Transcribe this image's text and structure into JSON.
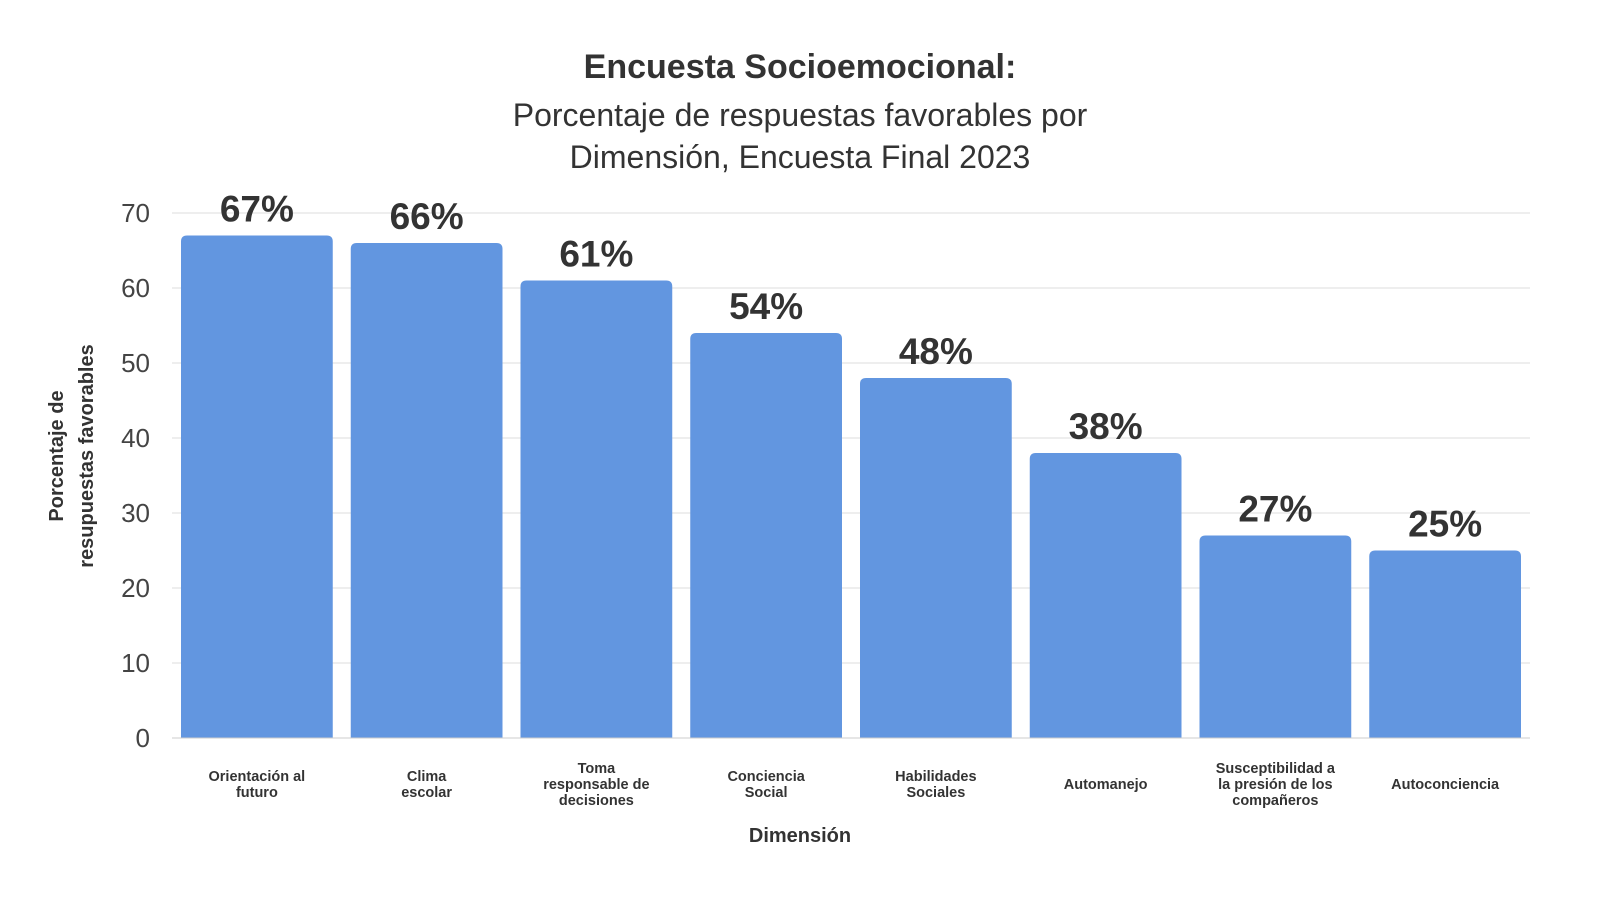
{
  "chart_data": {
    "type": "bar",
    "title": "Encuesta Socioemocional:",
    "subtitle_lines": [
      "Porcentaje de respuestas favorables por",
      "Dimensión, Encuesta Final 2023"
    ],
    "xlabel": "Dimensión",
    "ylabel_lines": [
      "Porcentaje de",
      "resupuestas favorables"
    ],
    "ylim": [
      0,
      70
    ],
    "yticks": [
      0,
      10,
      20,
      30,
      40,
      50,
      60,
      70
    ],
    "grid": true,
    "categories": [
      [
        "Orientación al",
        "futuro"
      ],
      [
        "Clima",
        "escolar"
      ],
      [
        "Toma",
        "responsable de",
        "decisiones"
      ],
      [
        "Conciencia",
        "Social"
      ],
      [
        "Habilidades",
        "Sociales"
      ],
      [
        "Automanejo"
      ],
      [
        "Susceptibilidad a",
        "la presión de los",
        "compañeros"
      ],
      [
        "Autoconciencia"
      ]
    ],
    "values": [
      67,
      66,
      61,
      54,
      48,
      38,
      27,
      25
    ],
    "data_labels": [
      "67%",
      "66%",
      "61%",
      "54%",
      "48%",
      "38%",
      "27%",
      "25%"
    ],
    "bar_color": "#6296e0",
    "grid_color": "#dddddd"
  }
}
